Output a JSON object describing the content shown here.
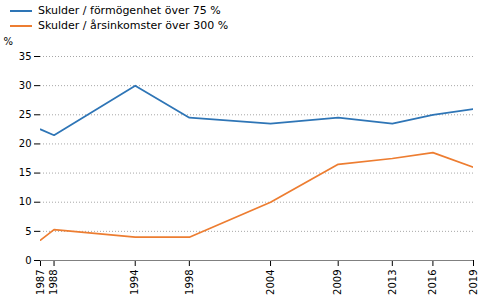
{
  "chart_data": {
    "type": "line",
    "x": [
      1987,
      1988,
      1994,
      1998,
      2004,
      2009,
      2013,
      2016,
      2019
    ],
    "series": [
      {
        "name": "Skulder / förmögenhet över 75 %",
        "color": "#2e75b6",
        "values": [
          22.5,
          21.5,
          30.0,
          24.5,
          23.5,
          24.5,
          23.5,
          25.0,
          26.0
        ]
      },
      {
        "name": "Skulder / årsinkomster över 300 %",
        "color": "#ed7d31",
        "values": [
          3.5,
          5.3,
          4.0,
          4.0,
          10.0,
          16.5,
          17.5,
          18.5,
          16.0
        ]
      }
    ],
    "ylabel": "%",
    "xlim": [
      1987,
      2019
    ],
    "xticks": [
      1987,
      1988,
      1994,
      1998,
      2004,
      2009,
      2013,
      2016,
      2019
    ],
    "ylim": [
      0,
      35
    ],
    "yticks": [
      0,
      5,
      10,
      15,
      20,
      25,
      30,
      35
    ],
    "grid": true,
    "legend": "upper left"
  }
}
